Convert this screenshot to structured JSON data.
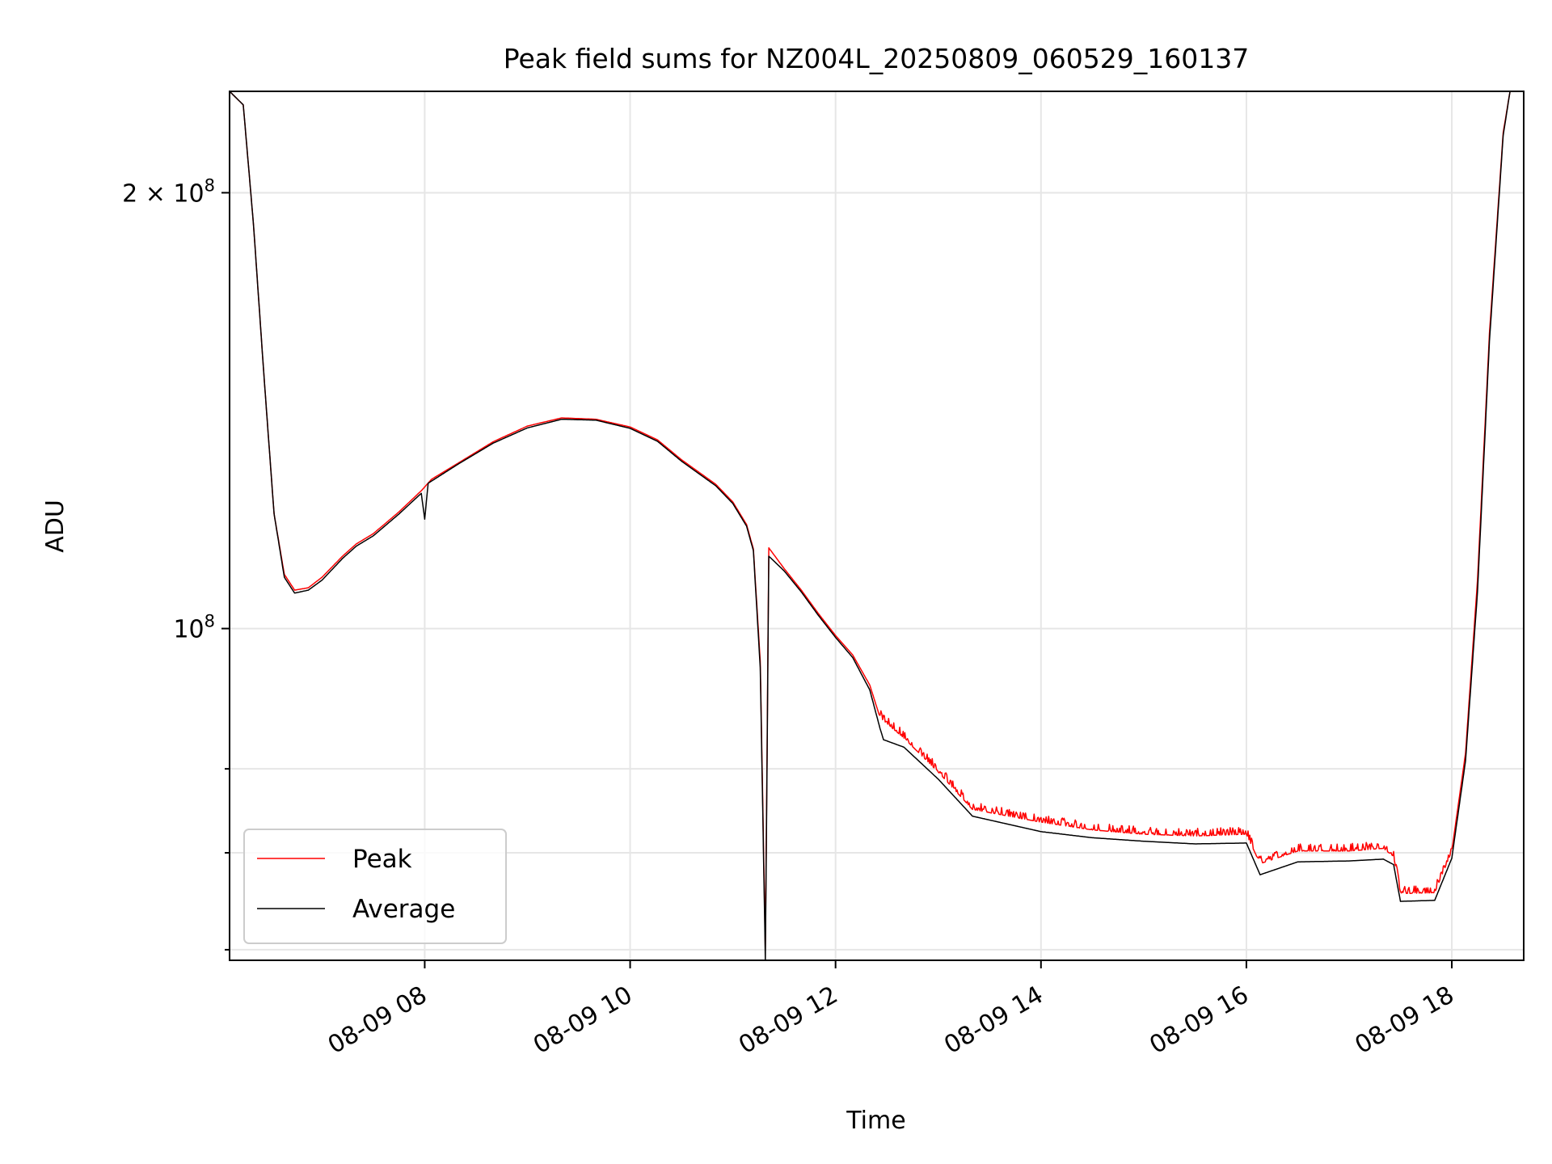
{
  "chart_data": {
    "type": "line",
    "title": "Peak field sums for NZ004L_20250809_060529_160137",
    "xlabel": "Time",
    "ylabel": "ADU",
    "y_scale": "log",
    "xlim": [
      "2025-08-09 06:06",
      "2025-08-09 18:42"
    ],
    "ylim": [
      59000000,
      235000000
    ],
    "x_ticks": [
      "08-09 08",
      "08-09 10",
      "08-09 12",
      "08-09 14",
      "08-09 16",
      "08-09 18"
    ],
    "x_tick_times": [
      "2025-08-09 08:00",
      "2025-08-09 10:00",
      "2025-08-09 12:00",
      "2025-08-09 14:00",
      "2025-08-09 16:00",
      "2025-08-09 18:00"
    ],
    "y_ticks_major": [
      {
        "value": 100000000,
        "base": "10",
        "exp": "8",
        "coef": ""
      },
      {
        "value": 200000000,
        "base": "10",
        "exp": "8",
        "coef": "2 × "
      }
    ],
    "y_ticks_minor": [
      60000000,
      70000000,
      80000000
    ],
    "grid": true,
    "legend": "lower-left",
    "series": [
      {
        "name": "Peak",
        "color": "#ff0000",
        "points": [
          [
            "2025-08-09 06:06",
            235000000
          ],
          [
            "2025-08-09 06:14",
            230000000
          ],
          [
            "2025-08-09 06:20",
            190000000
          ],
          [
            "2025-08-09 06:26",
            150000000
          ],
          [
            "2025-08-09 06:32",
            120000000
          ],
          [
            "2025-08-09 06:38",
            109000000
          ],
          [
            "2025-08-09 06:44",
            106300000
          ],
          [
            "2025-08-09 06:52",
            106700000
          ],
          [
            "2025-08-09 07:00",
            108500000
          ],
          [
            "2025-08-09 07:12",
            112200000
          ],
          [
            "2025-08-09 07:20",
            114400000
          ],
          [
            "2025-08-09 07:30",
            116300000
          ],
          [
            "2025-08-09 07:45",
            120400000
          ],
          [
            "2025-08-09 07:58",
            124500000
          ],
          [
            "2025-08-09 08:04",
            126800000
          ],
          [
            "2025-08-09 08:20",
            130200000
          ],
          [
            "2025-08-09 08:40",
            134600000
          ],
          [
            "2025-08-09 09:00",
            138000000
          ],
          [
            "2025-08-09 09:20",
            139800000
          ],
          [
            "2025-08-09 09:40",
            139500000
          ],
          [
            "2025-08-09 10:00",
            137800000
          ],
          [
            "2025-08-09 10:16",
            135000000
          ],
          [
            "2025-08-09 10:30",
            130800000
          ],
          [
            "2025-08-09 10:50",
            125800000
          ],
          [
            "2025-08-09 11:00",
            122300000
          ],
          [
            "2025-08-09 11:08",
            118000000
          ],
          [
            "2025-08-09 11:12",
            113500000
          ],
          [
            "2025-08-09 11:16",
            95000000
          ],
          [
            "2025-08-09 11:19",
            60000000
          ],
          [
            "2025-08-09 11:21",
            113700000
          ],
          [
            "2025-08-09 11:30",
            110000000
          ],
          [
            "2025-08-09 11:40",
            106300000
          ],
          [
            "2025-08-09 11:50",
            102400000
          ],
          [
            "2025-08-09 12:00",
            98900000
          ],
          [
            "2025-08-09 12:10",
            95900000
          ],
          [
            "2025-08-09 12:20",
            91400000
          ],
          [
            "2025-08-09 12:26",
            86800000
          ],
          [
            "2025-08-09 12:40",
            84000000
          ],
          [
            "2025-08-09 13:00",
            79600000
          ],
          [
            "2025-08-09 13:20",
            75000000
          ],
          [
            "2025-08-09 14:00",
            73500000
          ],
          [
            "2025-08-09 14:30",
            72600000
          ],
          [
            "2025-08-09 15:00",
            72100000
          ],
          [
            "2025-08-09 15:30",
            71900000
          ],
          [
            "2025-08-09 16:00",
            72100000
          ],
          [
            "2025-08-09 16:08",
            68800000
          ],
          [
            "2025-08-09 16:30",
            70200000
          ],
          [
            "2025-08-09 17:00",
            70200000
          ],
          [
            "2025-08-09 17:20",
            70500000
          ],
          [
            "2025-08-09 17:26",
            69600000
          ],
          [
            "2025-08-09 17:30",
            65600000
          ],
          [
            "2025-08-09 17:50",
            65700000
          ],
          [
            "2025-08-09 18:00",
            70200000
          ],
          [
            "2025-08-09 18:08",
            82000000
          ],
          [
            "2025-08-09 18:15",
            108000000
          ],
          [
            "2025-08-09 18:22",
            160000000
          ],
          [
            "2025-08-09 18:30",
            220000000
          ],
          [
            "2025-08-09 18:34",
            235000000
          ],
          [
            "2025-08-09 18:42",
            235000000
          ]
        ]
      },
      {
        "name": "Average",
        "color": "#000000",
        "points": [
          [
            "2025-08-09 06:06",
            235000000
          ],
          [
            "2025-08-09 06:14",
            230000000
          ],
          [
            "2025-08-09 06:20",
            190000000
          ],
          [
            "2025-08-09 06:26",
            150000000
          ],
          [
            "2025-08-09 06:32",
            120000000
          ],
          [
            "2025-08-09 06:38",
            108500000
          ],
          [
            "2025-08-09 06:44",
            105800000
          ],
          [
            "2025-08-09 06:52",
            106300000
          ],
          [
            "2025-08-09 07:00",
            108000000
          ],
          [
            "2025-08-09 07:12",
            111800000
          ],
          [
            "2025-08-09 07:20",
            114000000
          ],
          [
            "2025-08-09 07:30",
            115900000
          ],
          [
            "2025-08-09 07:45",
            120000000
          ],
          [
            "2025-08-09 07:58",
            124000000
          ],
          [
            "2025-08-09 08:00",
            119000000
          ],
          [
            "2025-08-09 08:02",
            126000000
          ],
          [
            "2025-08-09 08:20",
            130000000
          ],
          [
            "2025-08-09 08:40",
            134300000
          ],
          [
            "2025-08-09 09:00",
            137600000
          ],
          [
            "2025-08-09 09:20",
            139500000
          ],
          [
            "2025-08-09 09:40",
            139300000
          ],
          [
            "2025-08-09 10:00",
            137500000
          ],
          [
            "2025-08-09 10:16",
            134700000
          ],
          [
            "2025-08-09 10:30",
            130500000
          ],
          [
            "2025-08-09 10:50",
            125500000
          ],
          [
            "2025-08-09 11:00",
            122000000
          ],
          [
            "2025-08-09 11:08",
            117700000
          ],
          [
            "2025-08-09 11:12",
            113200000
          ],
          [
            "2025-08-09 11:16",
            94000000
          ],
          [
            "2025-08-09 11:19",
            59000000
          ],
          [
            "2025-08-09 11:21",
            112200000
          ],
          [
            "2025-08-09 11:30",
            109600000
          ],
          [
            "2025-08-09 11:40",
            106000000
          ],
          [
            "2025-08-09 11:50",
            102100000
          ],
          [
            "2025-08-09 12:00",
            98600000
          ],
          [
            "2025-08-09 12:10",
            95500000
          ],
          [
            "2025-08-09 12:20",
            90700000
          ],
          [
            "2025-08-09 12:26",
            85300000
          ],
          [
            "2025-08-09 12:28",
            83800000
          ],
          [
            "2025-08-09 12:40",
            82800000
          ],
          [
            "2025-08-09 13:00",
            78700000
          ],
          [
            "2025-08-09 13:20",
            74200000
          ],
          [
            "2025-08-09 14:00",
            72400000
          ],
          [
            "2025-08-09 14:30",
            71700000
          ],
          [
            "2025-08-09 15:00",
            71300000
          ],
          [
            "2025-08-09 15:30",
            71000000
          ],
          [
            "2025-08-09 16:00",
            71100000
          ],
          [
            "2025-08-09 16:08",
            67600000
          ],
          [
            "2025-08-09 16:30",
            69000000
          ],
          [
            "2025-08-09 17:00",
            69100000
          ],
          [
            "2025-08-09 17:20",
            69300000
          ],
          [
            "2025-08-09 17:26",
            68700000
          ],
          [
            "2025-08-09 17:30",
            64800000
          ],
          [
            "2025-08-09 17:50",
            64900000
          ],
          [
            "2025-08-09 18:00",
            69400000
          ],
          [
            "2025-08-09 18:08",
            81000000
          ],
          [
            "2025-08-09 18:15",
            106000000
          ],
          [
            "2025-08-09 18:22",
            158000000
          ],
          [
            "2025-08-09 18:30",
            219000000
          ],
          [
            "2025-08-09 18:34",
            235000000
          ],
          [
            "2025-08-09 18:42",
            235000000
          ]
        ]
      }
    ],
    "noise_segments": [
      {
        "from": "2025-08-09 12:26",
        "to": "2025-08-09 18:00",
        "amplitude": 0.012
      }
    ]
  }
}
